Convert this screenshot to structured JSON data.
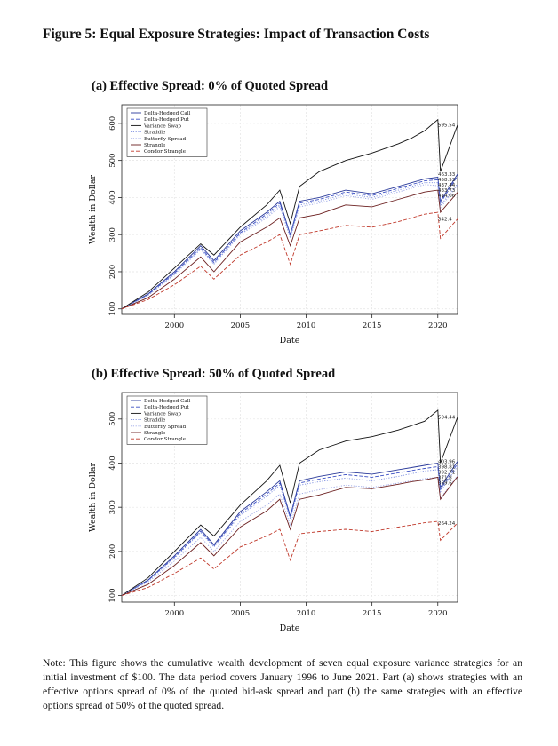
{
  "figure_title": "Figure 5: Equal Exposure Strategies: Impact of Transaction Costs",
  "note": "Note: This figure shows the cumulative wealth development of seven equal exposure variance strategies for an initial investment of $100. The data period covers January 1996 to June 2021. Part (a) shows strategies with an effective options spread of 0% of the quoted bid-ask spread and part (b) the same strategies with an effective options spread of 50% of the quoted spread.",
  "colors": {
    "Delta-Hedged Call": "#2a3a9a",
    "Delta-Hedged Put": "#3b4fc4",
    "Variance Swap": "#111111",
    "Straddle": "#7d8fe0",
    "Butterfly Spread": "#9aa6e6",
    "Strangle": "#6b1f1f",
    "Condor Strangle": "#c0392b"
  },
  "chart_data": [
    {
      "type": "line",
      "panel_title": "(a) Effective Spread: 0% of Quoted Spread",
      "xlabel": "Date",
      "ylabel": "Wealth in Dollar",
      "xlim": [
        1996,
        2021.5
      ],
      "ylim": [
        85,
        650
      ],
      "xticks": [
        2000,
        2005,
        2010,
        2015,
        2020
      ],
      "yticks": [
        100,
        200,
        300,
        400,
        500,
        600
      ],
      "legend_position": "top-left",
      "grid": true,
      "series": [
        {
          "name": "Delta-Hedged Call",
          "style": "solid",
          "x": [
            1996,
            1998,
            2000,
            2002,
            2003,
            2005,
            2007,
            2008,
            2008.8,
            2009.5,
            2011,
            2013,
            2015,
            2017,
            2018,
            2019,
            2020,
            2020.2,
            2021.5
          ],
          "y": [
            100,
            140,
            200,
            270,
            230,
            310,
            360,
            390,
            300,
            390,
            400,
            420,
            410,
            430,
            440,
            450,
            455,
            390,
            463.33
          ]
        },
        {
          "name": "Delta-Hedged Put",
          "style": "dashed",
          "x": [
            1996,
            1998,
            2000,
            2002,
            2003,
            2005,
            2007,
            2008,
            2008.8,
            2009.5,
            2011,
            2013,
            2015,
            2017,
            2018,
            2019,
            2020,
            2020.2,
            2021.5
          ],
          "y": [
            100,
            138,
            196,
            265,
            225,
            305,
            355,
            385,
            298,
            385,
            395,
            415,
            405,
            425,
            435,
            445,
            448,
            385,
            458.53
          ]
        },
        {
          "name": "Variance Swap",
          "style": "solid",
          "x": [
            1996,
            1998,
            2000,
            2002,
            2003,
            2005,
            2007,
            2008,
            2008.8,
            2009.5,
            2011,
            2013,
            2015,
            2017,
            2018,
            2019,
            2020,
            2020.2,
            2021.5
          ],
          "y": [
            100,
            145,
            210,
            275,
            245,
            320,
            380,
            420,
            330,
            430,
            470,
            500,
            520,
            545,
            560,
            580,
            610,
            470,
            595.54
          ]
        },
        {
          "name": "Straddle",
          "style": "dotted",
          "x": [
            1996,
            1998,
            2000,
            2002,
            2003,
            2005,
            2007,
            2008,
            2008.8,
            2009.5,
            2011,
            2013,
            2015,
            2017,
            2018,
            2019,
            2020,
            2020.2,
            2021.5
          ],
          "y": [
            100,
            137,
            194,
            262,
            222,
            302,
            350,
            380,
            295,
            380,
            390,
            410,
            400,
            420,
            430,
            440,
            440,
            378,
            437.44
          ]
        },
        {
          "name": "Butterfly Spread",
          "style": "dotted",
          "x": [
            1996,
            1998,
            2000,
            2002,
            2003,
            2005,
            2007,
            2008,
            2008.8,
            2009.5,
            2011,
            2013,
            2015,
            2017,
            2018,
            2019,
            2020,
            2020.2,
            2021.5
          ],
          "y": [
            100,
            136,
            192,
            260,
            220,
            300,
            345,
            375,
            290,
            375,
            385,
            405,
            395,
            415,
            425,
            435,
            432,
            372,
            433.73
          ]
        },
        {
          "name": "Strangle",
          "style": "solid",
          "x": [
            1996,
            1998,
            2000,
            2002,
            2003,
            2005,
            2007,
            2008,
            2008.8,
            2009.5,
            2011,
            2013,
            2015,
            2017,
            2018,
            2019,
            2020,
            2020.2,
            2021.5
          ],
          "y": [
            100,
            130,
            180,
            240,
            200,
            280,
            320,
            345,
            270,
            345,
            355,
            380,
            375,
            395,
            405,
            415,
            420,
            360,
            414.06
          ]
        },
        {
          "name": "Condor Strangle",
          "style": "dashed",
          "x": [
            1996,
            1998,
            2000,
            2002,
            2003,
            2005,
            2007,
            2008,
            2008.8,
            2009.5,
            2011,
            2013,
            2015,
            2017,
            2018,
            2019,
            2020,
            2020.2,
            2021.5
          ],
          "y": [
            100,
            125,
            165,
            215,
            180,
            245,
            280,
            300,
            220,
            300,
            310,
            325,
            320,
            335,
            345,
            355,
            360,
            290,
            342.4
          ]
        }
      ],
      "end_labels": [
        "595.54",
        "463.33",
        "458.53",
        "437.44",
        "433.73",
        "414.06",
        "342.4"
      ]
    },
    {
      "type": "line",
      "panel_title": "(b) Effective Spread: 50% of Quoted Spread",
      "xlabel": "Date",
      "ylabel": "Wealth in Dollar",
      "xlim": [
        1996,
        2021.5
      ],
      "ylim": [
        85,
        560
      ],
      "xticks": [
        2000,
        2005,
        2010,
        2015,
        2020
      ],
      "yticks": [
        100,
        200,
        300,
        400,
        500
      ],
      "legend_position": "top-left",
      "grid": true,
      "series": [
        {
          "name": "Delta-Hedged Call",
          "style": "solid",
          "x": [
            1996,
            1998,
            2000,
            2002,
            2003,
            2005,
            2007,
            2008,
            2008.8,
            2009.5,
            2011,
            2013,
            2015,
            2017,
            2018,
            2019,
            2020,
            2020.2,
            2021.5
          ],
          "y": [
            100,
            135,
            190,
            250,
            215,
            290,
            335,
            360,
            280,
            360,
            370,
            380,
            375,
            385,
            390,
            395,
            400,
            345,
            403.96
          ]
        },
        {
          "name": "Delta-Hedged Put",
          "style": "dashed",
          "x": [
            1996,
            1998,
            2000,
            2002,
            2003,
            2005,
            2007,
            2008,
            2008.8,
            2009.5,
            2011,
            2013,
            2015,
            2017,
            2018,
            2019,
            2020,
            2020.2,
            2021.5
          ],
          "y": [
            100,
            134,
            187,
            246,
            212,
            286,
            330,
            355,
            277,
            355,
            364,
            374,
            368,
            378,
            383,
            388,
            392,
            340,
            398.81
          ]
        },
        {
          "name": "Variance Swap",
          "style": "solid",
          "x": [
            1996,
            1998,
            2000,
            2002,
            2003,
            2005,
            2007,
            2008,
            2008.8,
            2009.5,
            2011,
            2013,
            2015,
            2017,
            2018,
            2019,
            2020,
            2020.2,
            2021.5
          ],
          "y": [
            100,
            140,
            200,
            260,
            235,
            305,
            360,
            395,
            310,
            400,
            430,
            450,
            460,
            475,
            485,
            495,
            520,
            400,
            504.44
          ]
        },
        {
          "name": "Straddle",
          "style": "dotted",
          "x": [
            1996,
            1998,
            2000,
            2002,
            2003,
            2005,
            2007,
            2008,
            2008.8,
            2009.5,
            2011,
            2013,
            2015,
            2017,
            2018,
            2019,
            2020,
            2020.2,
            2021.5
          ],
          "y": [
            100,
            133,
            185,
            243,
            210,
            282,
            325,
            350,
            273,
            350,
            358,
            366,
            360,
            370,
            376,
            382,
            385,
            335,
            392.71
          ]
        },
        {
          "name": "Butterfly Spread",
          "style": "dotted",
          "x": [
            1996,
            1998,
            2000,
            2002,
            2003,
            2005,
            2007,
            2008,
            2008.8,
            2009.5,
            2011,
            2013,
            2015,
            2017,
            2018,
            2019,
            2020,
            2020.2,
            2021.5
          ],
          "y": [
            100,
            130,
            178,
            232,
            200,
            268,
            305,
            330,
            260,
            330,
            340,
            350,
            345,
            355,
            360,
            365,
            368,
            320,
            371.8
          ]
        },
        {
          "name": "Strangle",
          "style": "solid",
          "x": [
            1996,
            1998,
            2000,
            2002,
            2003,
            2005,
            2007,
            2008,
            2008.8,
            2009.5,
            2011,
            2013,
            2015,
            2017,
            2018,
            2019,
            2020,
            2020.2,
            2021.5
          ],
          "y": [
            100,
            125,
            168,
            220,
            190,
            255,
            292,
            318,
            250,
            318,
            328,
            345,
            342,
            352,
            358,
            362,
            368,
            318,
            369.6
          ]
        },
        {
          "name": "Condor Strangle",
          "style": "dashed",
          "x": [
            1996,
            1998,
            2000,
            2002,
            2003,
            2005,
            2007,
            2008,
            2008.8,
            2009.5,
            2011,
            2013,
            2015,
            2017,
            2018,
            2019,
            2020,
            2020.2,
            2021.5
          ],
          "y": [
            100,
            118,
            150,
            185,
            160,
            210,
            235,
            250,
            180,
            240,
            245,
            250,
            245,
            255,
            260,
            265,
            268,
            225,
            264.24
          ]
        }
      ],
      "end_labels": [
        "504.44",
        "403.96",
        "398.81",
        "392.71",
        "371.8",
        "369.6",
        "264.24"
      ]
    }
  ]
}
